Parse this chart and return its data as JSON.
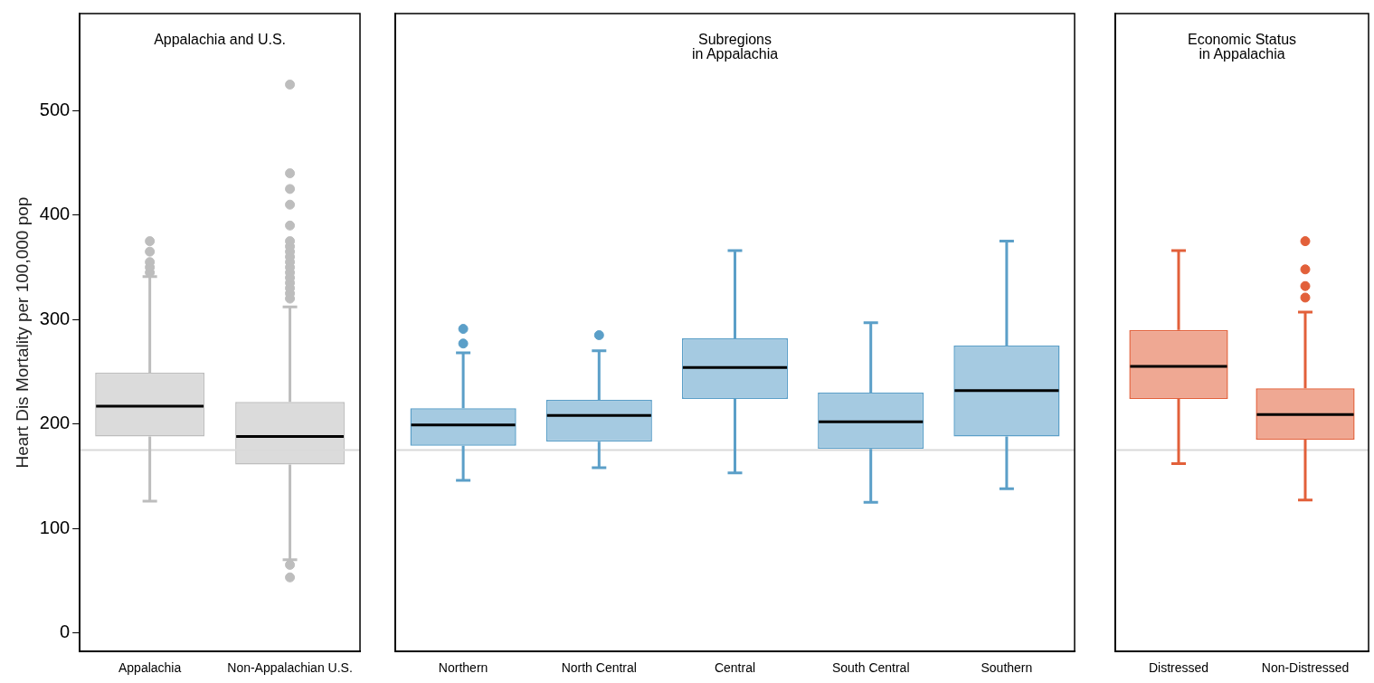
{
  "chart_data": [
    {
      "type": "box",
      "title": "Appalachia and U.S.",
      "ylabel": "Heart Dis Mortality per 100,000 pop",
      "categories": [
        "Appalachia",
        "Non-Appalachian U.S."
      ],
      "boxes": [
        {
          "low": 126,
          "q1": 188,
          "median": 217,
          "q3": 249,
          "high": 341,
          "outliers": [
            345,
            350,
            355,
            365,
            375
          ]
        },
        {
          "low": 70,
          "q1": 161,
          "median": 188,
          "q3": 221,
          "high": 312,
          "outliers": [
            53,
            65,
            320,
            325,
            330,
            335,
            340,
            345,
            350,
            355,
            360,
            365,
            370,
            375,
            390,
            410,
            425,
            440,
            525
          ]
        }
      ],
      "colors": [
        "#bdbdbd",
        "#bdbdbd"
      ],
      "ylim": [
        -18,
        593
      ],
      "yticks": [
        0,
        100,
        200,
        300,
        400,
        500
      ],
      "ref_lines": [
        {
          "axis": "y",
          "value": 175,
          "color": "#d9d9d9"
        }
      ]
    },
    {
      "type": "box",
      "title": "Subregions\nin Appalachia",
      "categories": [
        "Northern",
        "North Central",
        "Central",
        "South Central",
        "Southern"
      ],
      "boxes": [
        {
          "low": 146,
          "q1": 179,
          "median": 199,
          "q3": 215,
          "high": 268,
          "outliers": [
            277,
            291
          ]
        },
        {
          "low": 158,
          "q1": 183,
          "median": 208,
          "q3": 223,
          "high": 270,
          "outliers": [
            285
          ]
        },
        {
          "low": 153,
          "q1": 224,
          "median": 254,
          "q3": 282,
          "high": 366
        },
        {
          "low": 125,
          "q1": 176,
          "median": 202,
          "q3": 230,
          "high": 297
        },
        {
          "low": 138,
          "q1": 188,
          "median": 232,
          "q3": 275,
          "high": 375
        }
      ],
      "colors": [
        "#5b9fc8",
        "#5b9fc8",
        "#5b9fc8",
        "#5b9fc8",
        "#5b9fc8"
      ],
      "ylim": [
        -18,
        593
      ],
      "yticks": [
        0,
        100,
        200,
        300,
        400,
        500
      ],
      "tick_labels": "x",
      "ref_lines": [
        {
          "axis": "y",
          "value": 175,
          "color": "#d9d9d9"
        }
      ]
    },
    {
      "type": "box",
      "title": "Economic Status\nin Appalachia",
      "categories": [
        "Distressed",
        "Non-Distressed"
      ],
      "boxes": [
        {
          "low": 162,
          "q1": 224,
          "median": 255,
          "q3": 290,
          "high": 366
        },
        {
          "low": 127,
          "q1": 185,
          "median": 209,
          "q3": 234,
          "high": 307,
          "outliers": [
            321,
            332,
            348,
            375
          ]
        }
      ],
      "colors": [
        "#e2603a",
        "#e2603a"
      ],
      "ylim": [
        -18,
        593
      ],
      "yticks": [
        0,
        100,
        200,
        300,
        400,
        500
      ],
      "tick_labels": "x",
      "ref_lines": [
        {
          "axis": "y",
          "value": 175,
          "color": "#d9d9d9"
        }
      ]
    }
  ]
}
